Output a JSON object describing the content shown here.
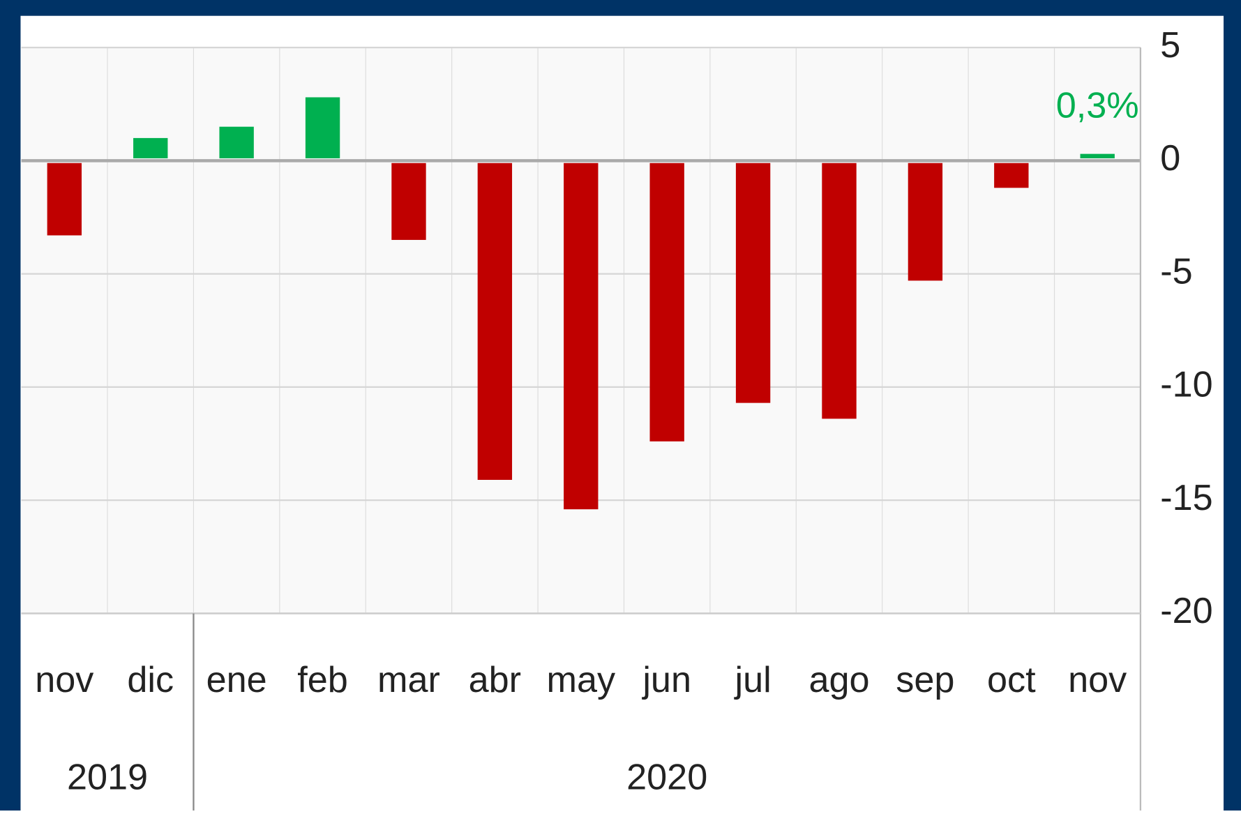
{
  "chart_data": {
    "type": "bar",
    "categories": [
      "nov",
      "dic",
      "ene",
      "feb",
      "mar",
      "abr",
      "may",
      "jun",
      "jul",
      "ago",
      "sep",
      "oct",
      "nov"
    ],
    "groups": [
      {
        "label": "2019",
        "span": 2
      },
      {
        "label": "2020",
        "span": 11
      }
    ],
    "values": [
      -3.3,
      1.0,
      1.5,
      2.8,
      -3.5,
      -14.1,
      -15.4,
      -12.4,
      -10.7,
      -11.4,
      -5.3,
      -1.2,
      0.3
    ],
    "value_labels": [
      null,
      null,
      null,
      null,
      null,
      null,
      null,
      null,
      null,
      null,
      null,
      null,
      "0,3%"
    ],
    "colors": [
      "#c00000",
      "#00b050",
      "#00b050",
      "#00b050",
      "#c00000",
      "#c00000",
      "#c00000",
      "#c00000",
      "#c00000",
      "#c00000",
      "#c00000",
      "#c00000",
      "#00b050"
    ],
    "ylim": [
      -20,
      5
    ],
    "yticks": [
      5,
      0,
      -5,
      -10,
      -15,
      -20
    ],
    "grid": true
  }
}
